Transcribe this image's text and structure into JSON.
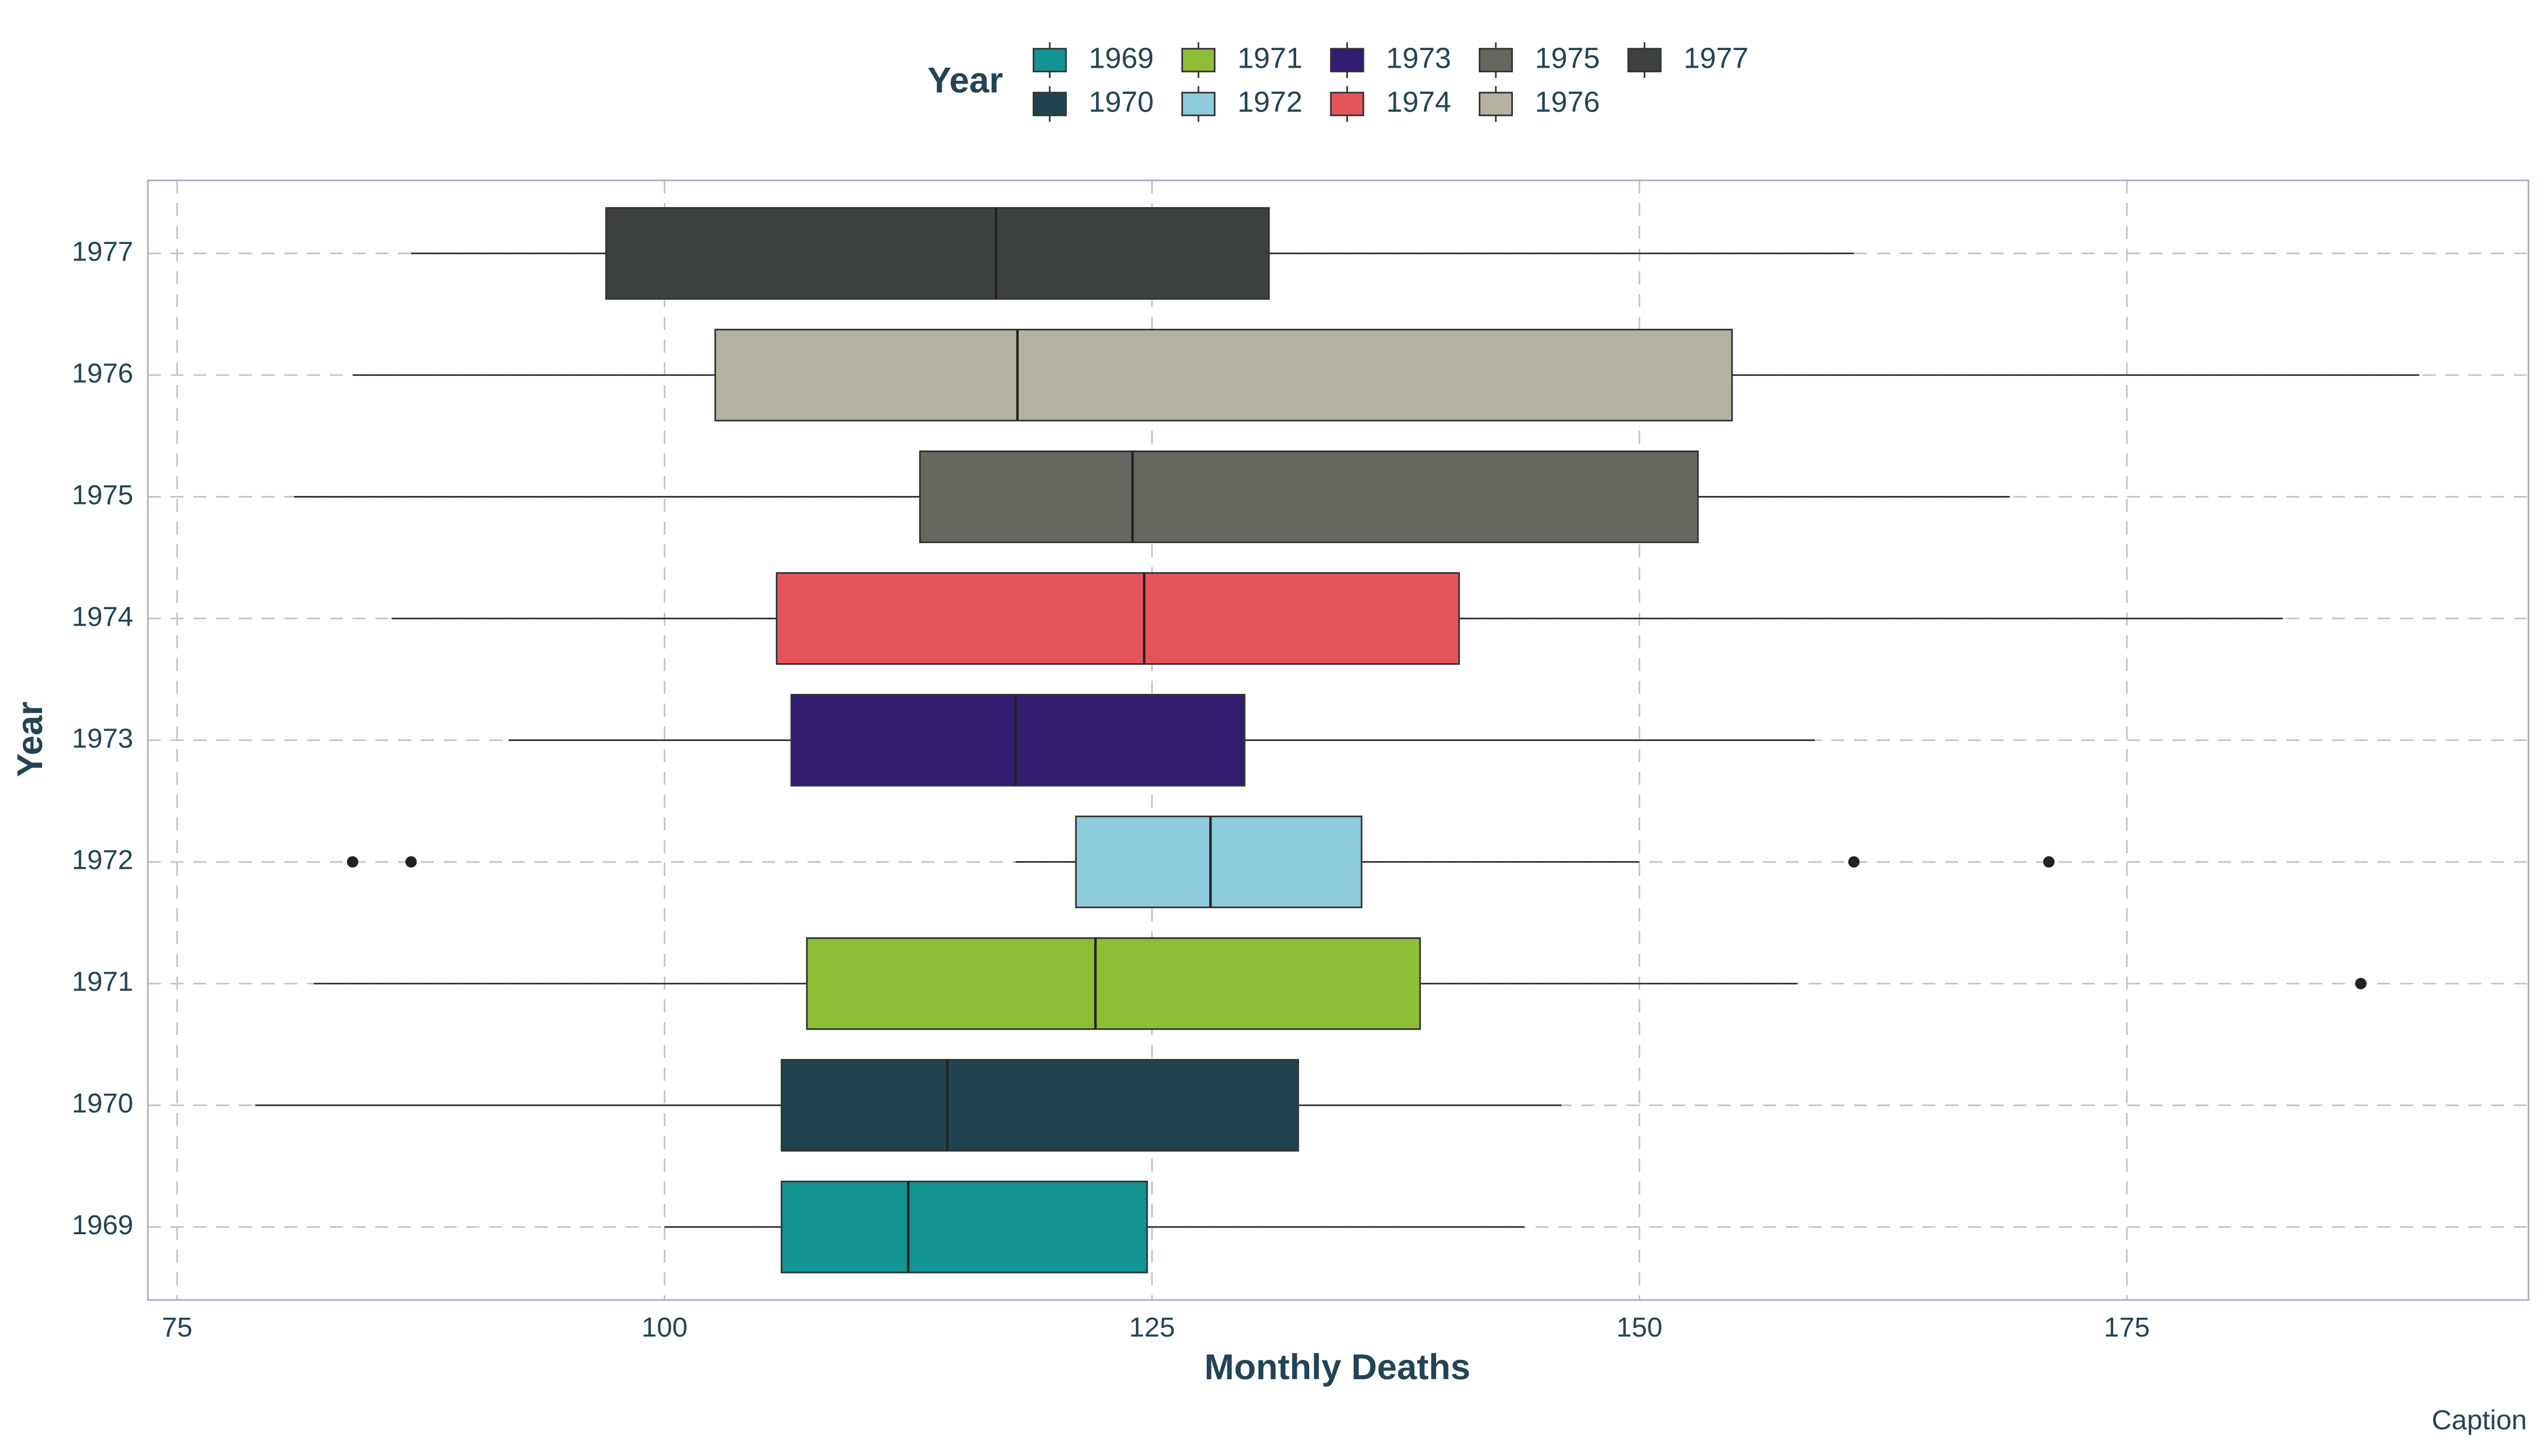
{
  "chart_data": {
    "type": "box",
    "legend_title": "Year",
    "xlabel": "Monthly Deaths",
    "ylabel": "Year",
    "caption": "Caption",
    "categories": [
      "1969",
      "1970",
      "1971",
      "1972",
      "1973",
      "1974",
      "1975",
      "1976",
      "1977"
    ],
    "boxes": [
      {
        "name": "1969",
        "color": "#139393",
        "whislo": 100,
        "q1": 106,
        "med": 112.5,
        "q3": 124.75,
        "whishi": 144.1,
        "fliers": []
      },
      {
        "name": "1970",
        "color": "#20444f",
        "whislo": 79,
        "q1": 106,
        "med": 114.5,
        "q3": 132.5,
        "whishi": 146,
        "fliers": []
      },
      {
        "name": "1971",
        "color": "#8ebd36",
        "whislo": 82,
        "q1": 107.3,
        "med": 122.1,
        "q3": 138.75,
        "whishi": 158.1,
        "fliers": [
          187
        ]
      },
      {
        "name": "1972",
        "color": "#8ecbdb",
        "whislo": 118,
        "q1": 121.1,
        "med": 128,
        "q3": 135.75,
        "whishi": 150,
        "fliers": [
          84,
          87,
          161,
          171
        ]
      },
      {
        "name": "1973",
        "color": "#321d73",
        "whislo": 92,
        "q1": 106.5,
        "med": 118,
        "q3": 129.75,
        "whishi": 159,
        "fliers": []
      },
      {
        "name": "1974",
        "color": "#e5545a",
        "whislo": 86,
        "q1": 105.75,
        "med": 124.6,
        "q3": 140.75,
        "whishi": 183,
        "fliers": []
      },
      {
        "name": "1975",
        "color": "#66665e",
        "whislo": 81,
        "q1": 113.1,
        "med": 124,
        "q3": 153,
        "whishi": 169,
        "fliers": []
      },
      {
        "name": "1976",
        "color": "#b6b2a2",
        "whislo": 84,
        "q1": 102.6,
        "med": 118.1,
        "q3": 154.75,
        "whishi": 190,
        "fliers": []
      },
      {
        "name": "1977",
        "color": "#3c403f",
        "whislo": 87,
        "q1": 97,
        "med": 117,
        "q3": 131,
        "whishi": 161,
        "fliers": []
      }
    ],
    "xlim": [
      73.5,
      195.6
    ],
    "xticks": [
      75,
      100,
      125,
      150,
      175
    ],
    "grid": true
  }
}
